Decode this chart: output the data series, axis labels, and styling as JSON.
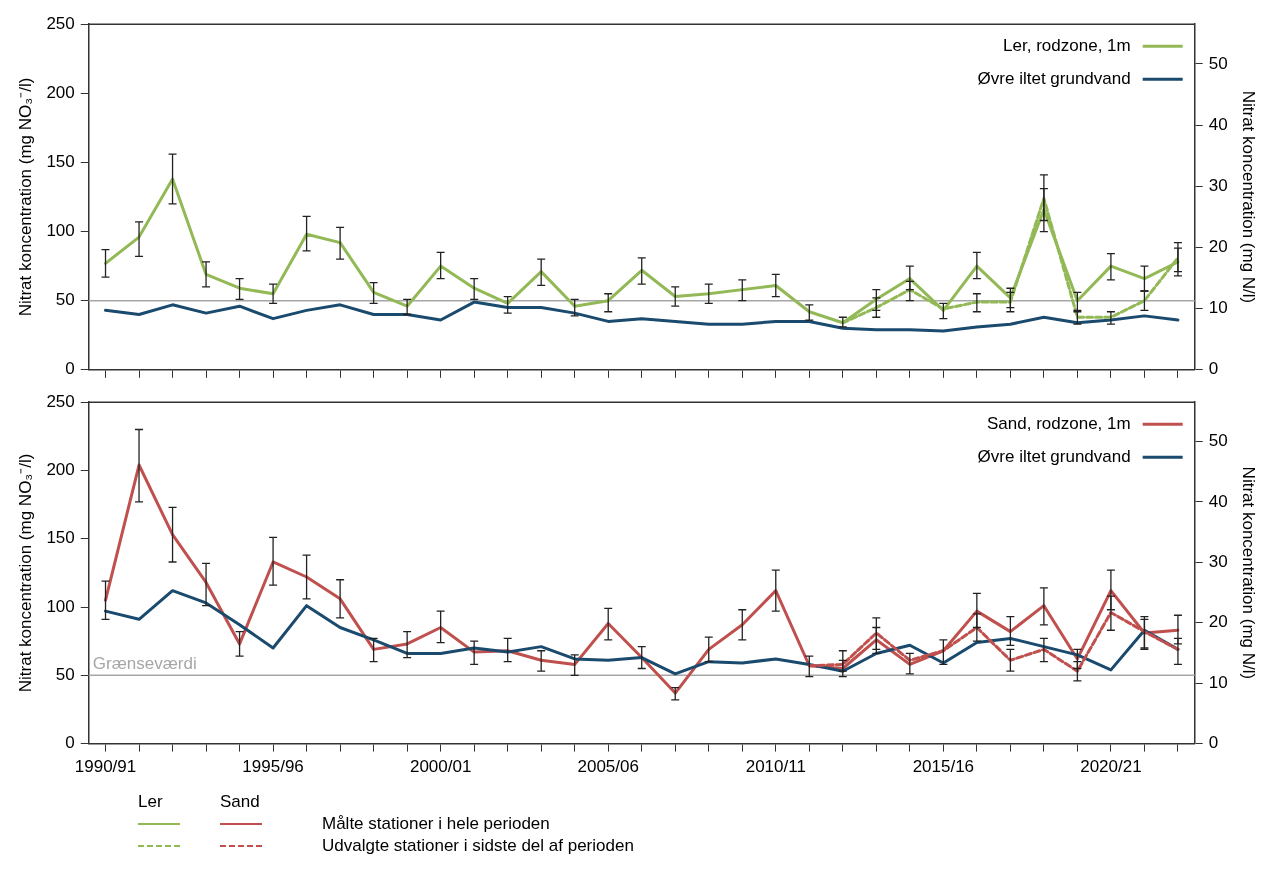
{
  "chart_data": [
    {
      "type": "line",
      "categories": [
        "1990/91",
        null,
        null,
        null,
        null,
        "1995/96",
        null,
        null,
        null,
        null,
        "2000/01",
        null,
        null,
        null,
        null,
        "2005/06",
        null,
        null,
        null,
        null,
        "2010/11",
        null,
        null,
        null,
        null,
        "2015/16",
        null,
        null,
        null,
        null,
        "2020/21",
        null,
        null
      ],
      "ylim": [
        0,
        250
      ],
      "yticks": [
        0,
        50,
        100,
        150,
        200,
        250
      ],
      "y2lim": [
        0,
        56.5
      ],
      "y2ticks": [
        0,
        10,
        20,
        30,
        40,
        50
      ],
      "ylabel": "Nitrat koncentration (mg NO₃⁻/l)",
      "y2label": "Nitrat koncentration (mg N/l)",
      "tick_labels": "y",
      "legend": "top right",
      "line_style": "solid",
      "ref_lines": [
        {
          "axis": "y",
          "value": 50,
          "color": "#a6a6a6"
        }
      ],
      "series": [
        {
          "name": "Ler, rodzone, 1m",
          "color": "#92b956",
          "values": [
            77,
            96,
            138,
            69,
            59,
            55,
            98,
            92,
            56,
            46,
            75,
            59,
            48,
            71,
            46,
            50,
            72,
            53,
            55,
            58,
            61,
            42,
            34,
            51,
            66,
            43,
            75,
            52,
            116,
            50,
            75,
            66,
            78
          ],
          "errors": [
            [
              67,
              87
            ],
            [
              82,
              107
            ],
            [
              120,
              156
            ],
            [
              60,
              78
            ],
            [
              51,
              66
            ],
            [
              48,
              62
            ],
            [
              86,
              111
            ],
            [
              80,
              103
            ],
            [
              48,
              63
            ],
            [
              40,
              51
            ],
            [
              66,
              85
            ],
            [
              51,
              66
            ],
            [
              41,
              53
            ],
            [
              61,
              80
            ],
            [
              39,
              51
            ],
            [
              42,
              55
            ],
            [
              62,
              81
            ],
            [
              46,
              60
            ],
            [
              48,
              62
            ],
            [
              50,
              65
            ],
            [
              53,
              69
            ],
            [
              36,
              47
            ],
            [
              31,
              38
            ],
            [
              43,
              58
            ],
            [
              58,
              75
            ],
            [
              37,
              48
            ],
            [
              66,
              85
            ],
            [
              45,
              59
            ],
            [
              100,
              131
            ],
            [
              42,
              56
            ],
            [
              65,
              84
            ],
            [
              57,
              75
            ],
            [
              68,
              92
            ]
          ]
        },
        {
          "name": "Øvre iltet grundvand",
          "color": "#1a4a6e",
          "values": [
            43,
            40,
            47,
            41,
            46,
            37,
            43,
            47,
            40,
            40,
            36,
            49,
            45,
            45,
            41,
            35,
            37,
            35,
            33,
            33,
            35,
            35,
            30,
            29,
            29,
            28,
            31,
            33,
            38,
            34,
            36,
            39,
            36
          ]
        },
        {
          "color": "#92b956",
          "line_style": "dashed",
          "values": [
            null,
            null,
            null,
            null,
            null,
            null,
            null,
            null,
            null,
            null,
            null,
            null,
            null,
            null,
            null,
            null,
            null,
            null,
            null,
            null,
            null,
            null,
            34,
            45,
            58,
            44,
            49,
            49,
            124,
            38,
            38,
            50,
            81
          ],
          "errors": [
            null,
            null,
            null,
            null,
            null,
            null,
            null,
            null,
            null,
            null,
            null,
            null,
            null,
            null,
            null,
            null,
            null,
            null,
            null,
            null,
            null,
            null,
            null,
            [
              38,
              52
            ],
            [
              50,
              64
            ],
            null,
            [
              42,
              55
            ],
            [
              42,
              56
            ],
            [
              108,
              141
            ],
            [
              33,
              43
            ],
            [
              33,
              42
            ],
            [
              43,
              57
            ],
            [
              71,
              88
            ]
          ]
        }
      ]
    },
    {
      "type": "line",
      "categories": [
        "1990/91",
        null,
        null,
        null,
        null,
        "1995/96",
        null,
        null,
        null,
        null,
        "2000/01",
        null,
        null,
        null,
        null,
        "2005/06",
        null,
        null,
        null,
        null,
        "2010/11",
        null,
        null,
        null,
        null,
        "2015/16",
        null,
        null,
        null,
        null,
        "2020/21",
        null,
        null
      ],
      "ylim": [
        0,
        250
      ],
      "yticks": [
        0,
        50,
        100,
        150,
        200,
        250
      ],
      "y2lim": [
        0,
        56.5
      ],
      "y2ticks": [
        0,
        10,
        20,
        30,
        40,
        50
      ],
      "ylabel": "Nitrat koncentration (mg NO₃⁻/l)",
      "y2label": "Nitrat koncentration (mg N/l)",
      "legend": "top right",
      "line_style": "solid",
      "ref_lines": [
        {
          "axis": "y",
          "value": 50,
          "label": "Grænseværdi",
          "color": "#a6a6a6"
        }
      ],
      "annotations": [
        "Ler",
        "Sand",
        "Målte stationer i hele perioden",
        "Udvalgte stationer i sidste del af perioden"
      ],
      "series": [
        {
          "name": "Sand, rodzone, 1m",
          "color": "#c0504d",
          "values": [
            105,
            204,
            153,
            118,
            73,
            133,
            122,
            106,
            69,
            73,
            85,
            67,
            68,
            61,
            58,
            88,
            63,
            37,
            69,
            87,
            112,
            57,
            55,
            76,
            58,
            68,
            97,
            82,
            101,
            62,
            112,
            81,
            83
          ],
          "errors": [
            [
              91,
              119
            ],
            [
              177,
              230
            ],
            [
              133,
              173
            ],
            [
              101,
              132
            ],
            [
              64,
              82
            ],
            [
              116,
              151
            ],
            [
              106,
              138
            ],
            [
              92,
              120
            ],
            [
              60,
              77
            ],
            [
              63,
              82
            ],
            [
              74,
              97
            ],
            [
              58,
              75
            ],
            [
              60,
              77
            ],
            [
              53,
              68
            ],
            [
              50,
              65
            ],
            [
              76,
              99
            ],
            [
              55,
              71
            ],
            [
              32,
              41
            ],
            [
              60,
              78
            ],
            [
              76,
              98
            ],
            [
              97,
              127
            ],
            [
              49,
              64
            ],
            [
              49,
              61
            ],
            [
              66,
              85
            ],
            [
              51,
              66
            ],
            [
              58,
              76
            ],
            [
              85,
              110
            ],
            [
              72,
              93
            ],
            [
              87,
              114
            ],
            [
              55,
              69
            ],
            [
              98,
              127
            ],
            [
              69,
              93
            ],
            [
              73,
              94
            ]
          ]
        },
        {
          "name": "Øvre iltet grundvand",
          "color": "#1a4a6e",
          "values": [
            97,
            91,
            112,
            103,
            87,
            70,
            101,
            85,
            76,
            66,
            66,
            70,
            67,
            71,
            62,
            61,
            63,
            51,
            60,
            59,
            62,
            58,
            53,
            66,
            72,
            59,
            74,
            77,
            71,
            65,
            54,
            83,
            69
          ]
        },
        {
          "color": "#c0504d",
          "line_style": "dashed",
          "values": [
            null,
            null,
            null,
            null,
            null,
            null,
            null,
            null,
            null,
            null,
            null,
            null,
            null,
            null,
            null,
            null,
            null,
            null,
            null,
            null,
            null,
            57,
            58,
            81,
            61,
            68,
            85,
            61,
            69,
            53,
            96,
            82,
            69
          ],
          "errors": [
            null,
            null,
            null,
            null,
            null,
            null,
            null,
            null,
            null,
            null,
            null,
            null,
            null,
            null,
            null,
            null,
            null,
            null,
            null,
            null,
            null,
            null,
            [
              53,
              68
            ],
            [
              69,
              92
            ],
            null,
            null,
            [
              75,
              95
            ],
            [
              53,
              69
            ],
            [
              60,
              77
            ],
            [
              46,
              60
            ],
            [
              83,
              108
            ],
            [
              70,
              91
            ],
            [
              58,
              77
            ]
          ]
        }
      ]
    }
  ]
}
